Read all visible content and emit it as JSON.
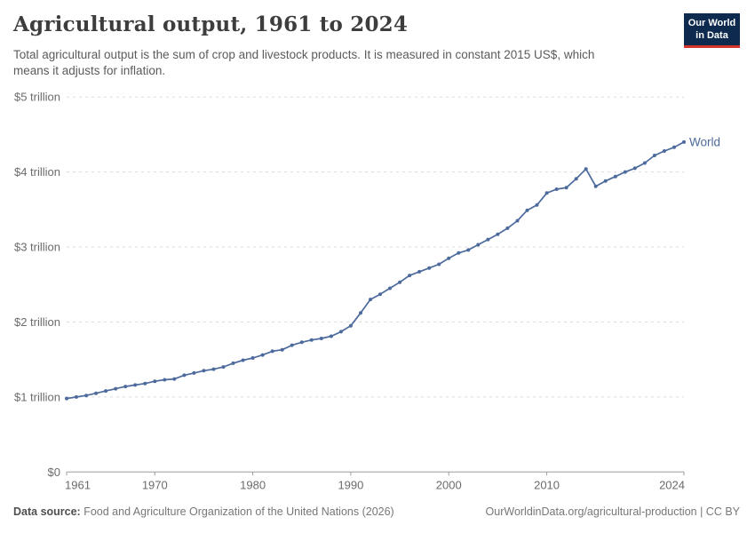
{
  "header": {
    "title": "Agricultural output, 1961 to 2024",
    "subtitle_lines": [
      "Total agricultural output is the sum of crop and livestock products. It is measured in constant 2015 US$, which",
      "means it adjusts for inflation."
    ]
  },
  "logo": {
    "line1": "Our World",
    "line2": "in Data",
    "bg_color": "#0e2a4f",
    "bar_color": "#d2352b",
    "text_color": "#ffffff"
  },
  "chart_data": {
    "type": "line",
    "title": "Agricultural output, 1961 to 2024",
    "xlabel": "",
    "ylabel": "",
    "xlim": [
      1961,
      2024
    ],
    "ylim": [
      0,
      5
    ],
    "grid": "dashed-horizontal",
    "legend_position": "end-of-line-label",
    "x_ticks": [
      1961,
      1970,
      1980,
      1990,
      2000,
      2010,
      2024
    ],
    "y_ticks": [
      {
        "value": 0,
        "label": "$0"
      },
      {
        "value": 1,
        "label": "$1 trillion"
      },
      {
        "value": 2,
        "label": "$2 trillion"
      },
      {
        "value": 3,
        "label": "$3 trillion"
      },
      {
        "value": 4,
        "label": "$4 trillion"
      },
      {
        "value": 5,
        "label": "$5 trillion"
      }
    ],
    "x": [
      1961,
      1962,
      1963,
      1964,
      1965,
      1966,
      1967,
      1968,
      1969,
      1970,
      1971,
      1972,
      1973,
      1974,
      1975,
      1976,
      1977,
      1978,
      1979,
      1980,
      1981,
      1982,
      1983,
      1984,
      1985,
      1986,
      1987,
      1988,
      1989,
      1990,
      1991,
      1992,
      1993,
      1994,
      1995,
      1996,
      1997,
      1998,
      1999,
      2000,
      2001,
      2002,
      2003,
      2004,
      2005,
      2006,
      2007,
      2008,
      2009,
      2010,
      2011,
      2012,
      2013,
      2014,
      2015,
      2016,
      2017,
      2018,
      2019,
      2020,
      2021,
      2022,
      2023,
      2024
    ],
    "series": [
      {
        "name": "World",
        "color": "#4c6a9c",
        "unit": "trillion constant 2015 US$",
        "values": [
          0.98,
          1.0,
          1.02,
          1.05,
          1.08,
          1.11,
          1.14,
          1.16,
          1.18,
          1.21,
          1.23,
          1.24,
          1.29,
          1.32,
          1.35,
          1.37,
          1.4,
          1.45,
          1.49,
          1.52,
          1.56,
          1.61,
          1.63,
          1.69,
          1.73,
          1.76,
          1.78,
          1.81,
          1.87,
          1.95,
          2.12,
          2.3,
          2.37,
          2.45,
          2.53,
          2.62,
          2.67,
          2.72,
          2.77,
          2.85,
          2.92,
          2.96,
          3.03,
          3.1,
          3.17,
          3.25,
          3.35,
          3.49,
          3.56,
          3.72,
          3.77,
          3.79,
          3.91,
          4.04,
          3.81,
          3.88,
          3.94,
          4.0,
          4.05,
          4.12,
          4.22,
          4.28,
          4.33,
          4.4
        ]
      }
    ]
  },
  "footer": {
    "source_label": "Data source:",
    "source_text": " Food and Agriculture Organization of the United Nations (2026)",
    "link_text": "OurWorldinData.org/agricultural-production | CC BY"
  },
  "colors": {
    "line": "#4c6a9c",
    "axis_text": "#6b6b6b",
    "gridline": "#dcdcdc",
    "axis_line": "#9e9e9e",
    "title_text": "#3d3d3d",
    "subtitle_text": "#5b5b5b"
  }
}
